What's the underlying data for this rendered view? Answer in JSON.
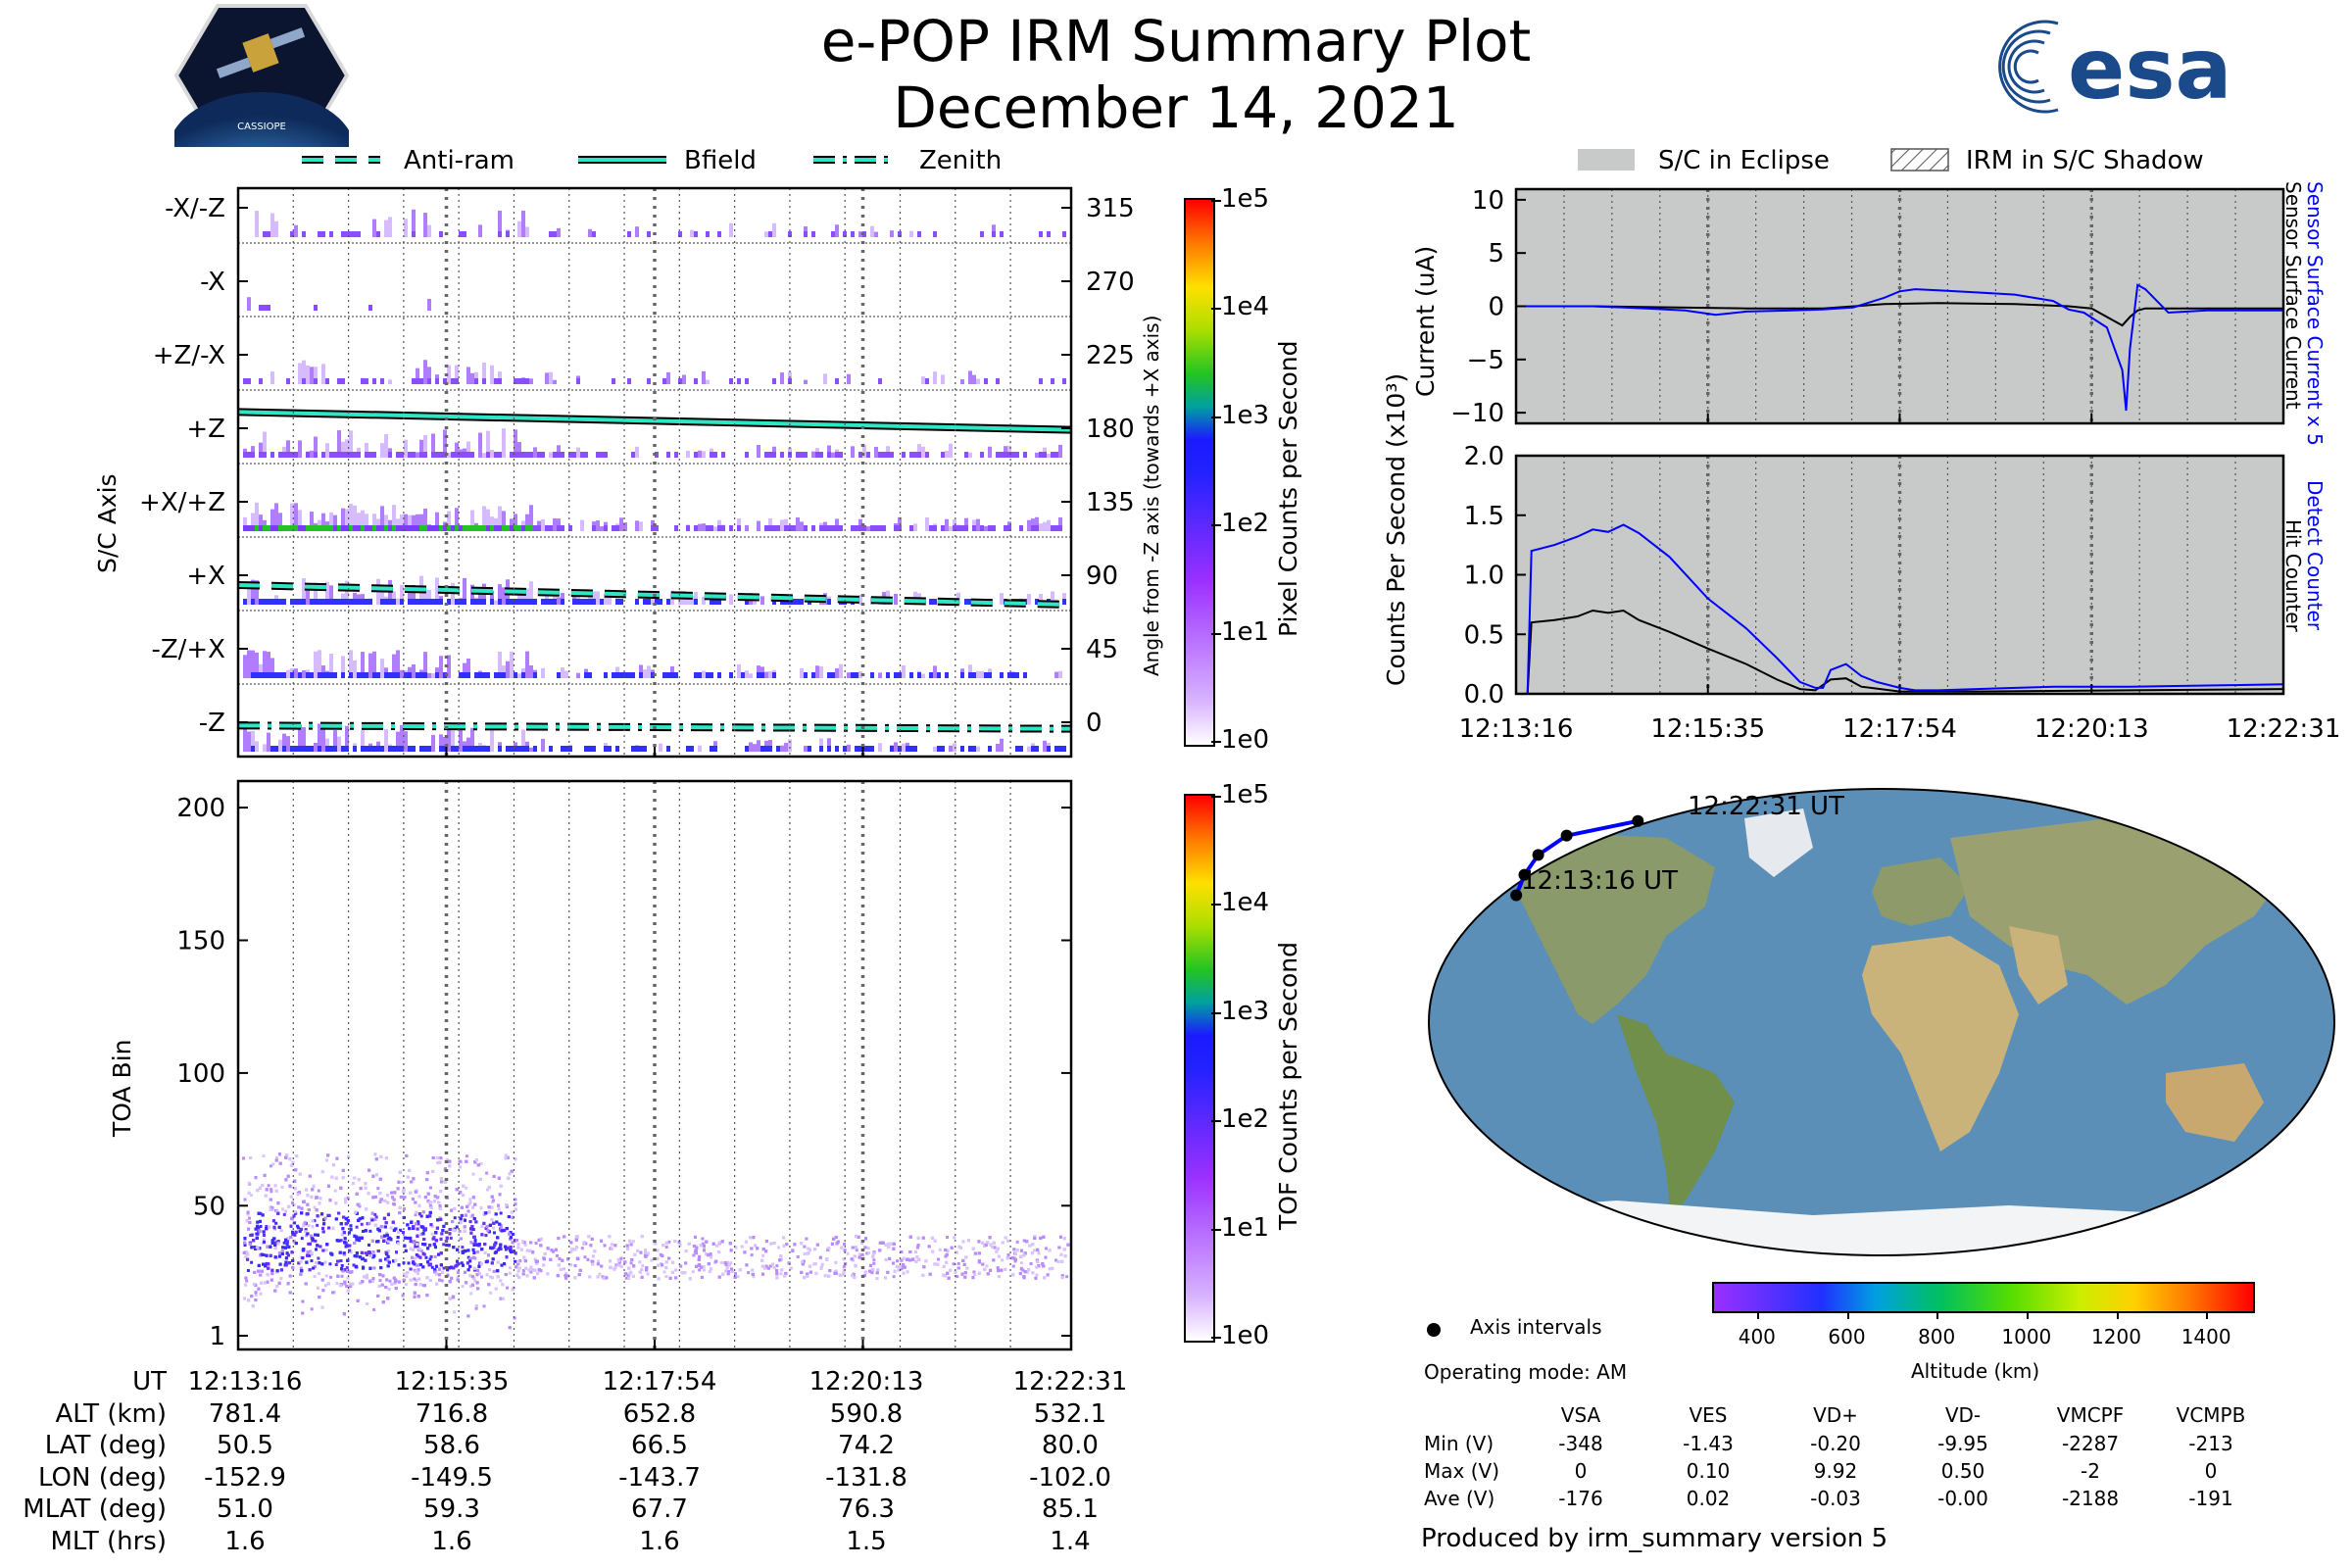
{
  "header": {
    "title": "e-POP IRM Summary Plot",
    "subtitle": "December 14, 2021",
    "esa_logo_text": "esa",
    "mission_logo_text": "CASSIOPE"
  },
  "legend_top": {
    "anti_ram": "Anti-ram",
    "bfield": "Bfield",
    "zenith": "Zenith"
  },
  "legend_right": {
    "eclipse": "S/C in Eclipse",
    "shadow": "IRM in S/C Shadow"
  },
  "colors": {
    "purple": "#9b30ff",
    "blue": "#1a1aff",
    "green": "#22c422",
    "teal": "#2ee6c5",
    "eclipse_gray": "#c8c9c9",
    "series_blue": "#0000ff",
    "series_black": "#000000"
  },
  "chart_data": [
    {
      "type": "heatmap",
      "name": "pixel-counts",
      "ylabel": "S/C Axis",
      "y2label": "Angle from -Z axis (towards +X axis)",
      "colorbar_label": "Pixel Counts per Second",
      "colorbar_ticks": [
        "1e0",
        "1e1",
        "1e2",
        "1e3",
        "1e4",
        "1e5"
      ],
      "axis_labels": [
        "-X/-Z",
        "-X",
        "+Z/-X",
        "+Z",
        "+X/+Z",
        "+X",
        "-Z/+X",
        "-Z"
      ],
      "angle_ticks": [
        315,
        270,
        225,
        180,
        135,
        90,
        45,
        0
      ],
      "bfield_angle": [
        190,
        179
      ],
      "antiram_angle": [
        84,
        72
      ],
      "zenith_angle": [
        -2,
        -4
      ]
    },
    {
      "type": "heatmap",
      "name": "tof-counts",
      "ylabel": "TOA Bin",
      "colorbar_label": "TOF Counts per Second",
      "colorbar_ticks": [
        "1e0",
        "1e1",
        "1e2",
        "1e3",
        "1e4",
        "1e5"
      ],
      "yticks": [
        1,
        50,
        100,
        150,
        200
      ],
      "ylim": [
        1,
        210
      ]
    },
    {
      "type": "line",
      "name": "current",
      "ylabel": "Current (uA)",
      "y2label_blue": "Sensor Surface Current x 5",
      "y2label_black": "Sensor Surface Current",
      "yticks": [
        10,
        5,
        0,
        -5,
        -10
      ],
      "ylim": [
        -11,
        11
      ],
      "series": [
        {
          "name": "Sensor Surface Current x 5",
          "color": "#0000ff",
          "x": [
            0,
            0.1,
            0.17,
            0.22,
            0.26,
            0.3,
            0.36,
            0.4,
            0.44,
            0.48,
            0.5,
            0.52,
            0.55,
            0.6,
            0.65,
            0.7,
            0.72,
            0.74,
            0.77,
            0.79,
            0.795,
            0.8,
            0.81,
            0.82,
            0.85,
            0.9,
            1.0
          ],
          "y": [
            0,
            0,
            -0.2,
            -0.4,
            -0.8,
            -0.5,
            -0.4,
            -0.3,
            -0.1,
            0.8,
            1.4,
            1.6,
            1.5,
            1.3,
            1.1,
            0.5,
            -0.3,
            -0.6,
            -2.0,
            -6.0,
            -9.8,
            -4.0,
            2.0,
            1.6,
            -0.6,
            -0.4,
            -0.4
          ]
        },
        {
          "name": "Sensor Surface Current",
          "color": "#000000",
          "x": [
            0,
            0.1,
            0.2,
            0.3,
            0.4,
            0.48,
            0.55,
            0.65,
            0.72,
            0.75,
            0.79,
            0.8,
            0.81,
            0.82,
            0.85,
            0.9,
            1.0
          ],
          "y": [
            0,
            0,
            -0.1,
            -0.2,
            -0.2,
            0.2,
            0.3,
            0.2,
            0,
            -0.2,
            -1.8,
            -1.0,
            -0.4,
            -0.2,
            -0.2,
            -0.2,
            -0.2
          ]
        }
      ]
    },
    {
      "type": "line",
      "name": "counts",
      "ylabel": "Counts Per Second (x10³)",
      "y2label_blue": "Detect Counter",
      "y2label_black": "Hit Counter",
      "yticks": [
        2.0,
        1.5,
        1.0,
        0.5,
        0.0
      ],
      "ylim": [
        0,
        2.0
      ],
      "xticklabels": [
        "12:13:16",
        "12:15:35",
        "12:17:54",
        "12:20:13",
        "12:22:31"
      ],
      "series": [
        {
          "name": "Detect Counter",
          "color": "#0000ff",
          "x": [
            0,
            0.015,
            0.02,
            0.05,
            0.08,
            0.1,
            0.12,
            0.14,
            0.16,
            0.2,
            0.25,
            0.3,
            0.34,
            0.37,
            0.39,
            0.4,
            0.41,
            0.43,
            0.45,
            0.47,
            0.5,
            0.52,
            0.55,
            0.6,
            0.7,
            0.8,
            0.9,
            1.0
          ],
          "y": [
            0,
            0,
            1.2,
            1.25,
            1.32,
            1.38,
            1.36,
            1.42,
            1.35,
            1.15,
            0.8,
            0.55,
            0.3,
            0.1,
            0.05,
            0.05,
            0.2,
            0.25,
            0.15,
            0.1,
            0.05,
            0.03,
            0.03,
            0.04,
            0.06,
            0.06,
            0.07,
            0.08
          ]
        },
        {
          "name": "Hit Counter",
          "color": "#000000",
          "x": [
            0,
            0.015,
            0.02,
            0.05,
            0.08,
            0.1,
            0.12,
            0.14,
            0.16,
            0.2,
            0.25,
            0.3,
            0.34,
            0.37,
            0.39,
            0.41,
            0.43,
            0.45,
            0.5,
            0.6,
            0.8,
            1.0
          ],
          "y": [
            0,
            0,
            0.6,
            0.62,
            0.65,
            0.7,
            0.68,
            0.7,
            0.62,
            0.52,
            0.38,
            0.25,
            0.12,
            0.04,
            0.03,
            0.12,
            0.13,
            0.06,
            0.02,
            0.02,
            0.03,
            0.04
          ]
        }
      ]
    },
    {
      "type": "scatter",
      "name": "ground-track",
      "start_label": "12:13:16 UT",
      "end_label": "12:22:31 UT",
      "legend_label": "Axis intervals",
      "colorbar_label": "Altitude (km)",
      "colorbar_ticks": [
        400,
        600,
        800,
        1000,
        1200,
        1400
      ],
      "lon": [
        -152.9,
        -149.5,
        -143.7,
        -131.8,
        -102.0
      ],
      "lat": [
        50.5,
        58.6,
        66.5,
        74.2,
        80.0
      ],
      "alt": [
        781.4,
        716.8,
        652.8,
        590.8,
        532.1
      ]
    }
  ],
  "ephemeris": {
    "rows": [
      {
        "label": "UT",
        "values": [
          "12:13:16",
          "12:15:35",
          "12:17:54",
          "12:20:13",
          "12:22:31"
        ]
      },
      {
        "label": "ALT (km)",
        "values": [
          "781.4",
          "716.8",
          "652.8",
          "590.8",
          "532.1"
        ]
      },
      {
        "label": "LAT (deg)",
        "values": [
          "50.5",
          "58.6",
          "66.5",
          "74.2",
          "80.0"
        ]
      },
      {
        "label": "LON (deg)",
        "values": [
          "-152.9",
          "-149.5",
          "-143.7",
          "-131.8",
          "-102.0"
        ]
      },
      {
        "label": "MLAT (deg)",
        "values": [
          "51.0",
          "59.3",
          "67.7",
          "76.3",
          "85.1"
        ]
      },
      {
        "label": "MLT (hrs)",
        "values": [
          "1.6",
          "1.6",
          "1.6",
          "1.5",
          "1.4"
        ]
      }
    ]
  },
  "operating_mode": "Operating mode: AM",
  "voltage_table": {
    "columns": [
      "VSA",
      "VES",
      "VD+",
      "VD-",
      "VMCPF",
      "VCMPB"
    ],
    "rows": [
      {
        "label": "Min (V)",
        "values": [
          "-348",
          "-1.43",
          "-0.20",
          "-9.95",
          "-2287",
          "-213"
        ]
      },
      {
        "label": "Max (V)",
        "values": [
          "0",
          "0.10",
          "9.92",
          "0.50",
          "-2",
          "0"
        ]
      },
      {
        "label": "Ave (V)",
        "values": [
          "-176",
          "0.02",
          "-0.03",
          "-0.00",
          "-2188",
          "-191"
        ]
      }
    ]
  },
  "footer": "Produced by irm_summary version 5"
}
